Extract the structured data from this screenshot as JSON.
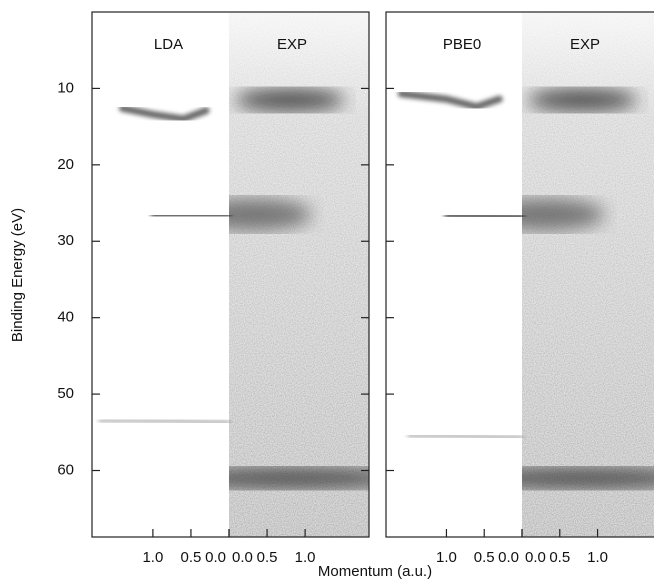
{
  "chart_data": {
    "type": "density-map",
    "y_label": "Binding Energy (eV)",
    "x_label": "Momentum (a.u.)",
    "ylim": [
      0,
      68.7
    ],
    "y_inverted": true,
    "yticks": [
      10,
      20,
      30,
      40,
      50,
      60
    ],
    "xlim": [
      0,
      1.8
    ],
    "panels": [
      {
        "theory_label": "LDA",
        "exp_label": "EXP",
        "xticks_theory": [
          {
            "value": 1,
            "label": "1.0"
          },
          {
            "value": 0.5,
            "label": "0.5"
          },
          {
            "value": 0,
            "label": "0.0"
          }
        ],
        "xticks_exp": [
          {
            "value": 0,
            "label": "0.0"
          },
          {
            "value": 0.5,
            "label": "0.5"
          },
          {
            "value": 1,
            "label": "1.0"
          }
        ],
        "theory_bands": [
          {
            "k": [
              1.4,
              1.0,
              0.6,
              0.3
            ],
            "E": [
              12.6,
              13.4,
              14.0,
              12.9
            ]
          },
          {
            "k": [
              1.0,
              0.5,
              0
            ],
            "E": [
              26.6,
              26.6,
              26.7
            ]
          },
          {
            "k": [
              1.7,
              0.8,
              0
            ],
            "E": [
              53.4,
              53.5,
              53.7
            ]
          }
        ],
        "exp_bands": [
          {
            "k": 0.8,
            "E": 11.5
          },
          {
            "k": 0.3,
            "E": 26.5
          },
          {
            "k": 0.8,
            "E": 61
          }
        ]
      },
      {
        "theory_label": "PBE0",
        "exp_label": "EXP",
        "xticks_theory": [
          {
            "value": 1,
            "label": "1.0"
          },
          {
            "value": 0.5,
            "label": "0.5"
          },
          {
            "value": 0,
            "label": "0.0"
          }
        ],
        "xticks_exp": [
          {
            "value": 0,
            "label": "0.0"
          },
          {
            "value": 0.5,
            "label": "0.5"
          },
          {
            "value": 1,
            "label": "1.0"
          }
        ],
        "theory_bands": [
          {
            "k": [
              1.6,
              1.0,
              0.6,
              0.3
            ],
            "E": [
              10.7,
              11.4,
              12.4,
              11.4
            ]
          },
          {
            "k": [
              1.0,
              0.5,
              0
            ],
            "E": [
              26.6,
              26.7,
              26.8
            ]
          },
          {
            "k": [
              1.5,
              0.8,
              0
            ],
            "E": [
              55.4,
              55.5,
              55.7
            ]
          }
        ],
        "exp_bands": [
          {
            "k": 0.8,
            "E": 11.5
          },
          {
            "k": 0.3,
            "E": 26.5
          },
          {
            "k": 0.8,
            "E": 61
          }
        ]
      }
    ]
  }
}
